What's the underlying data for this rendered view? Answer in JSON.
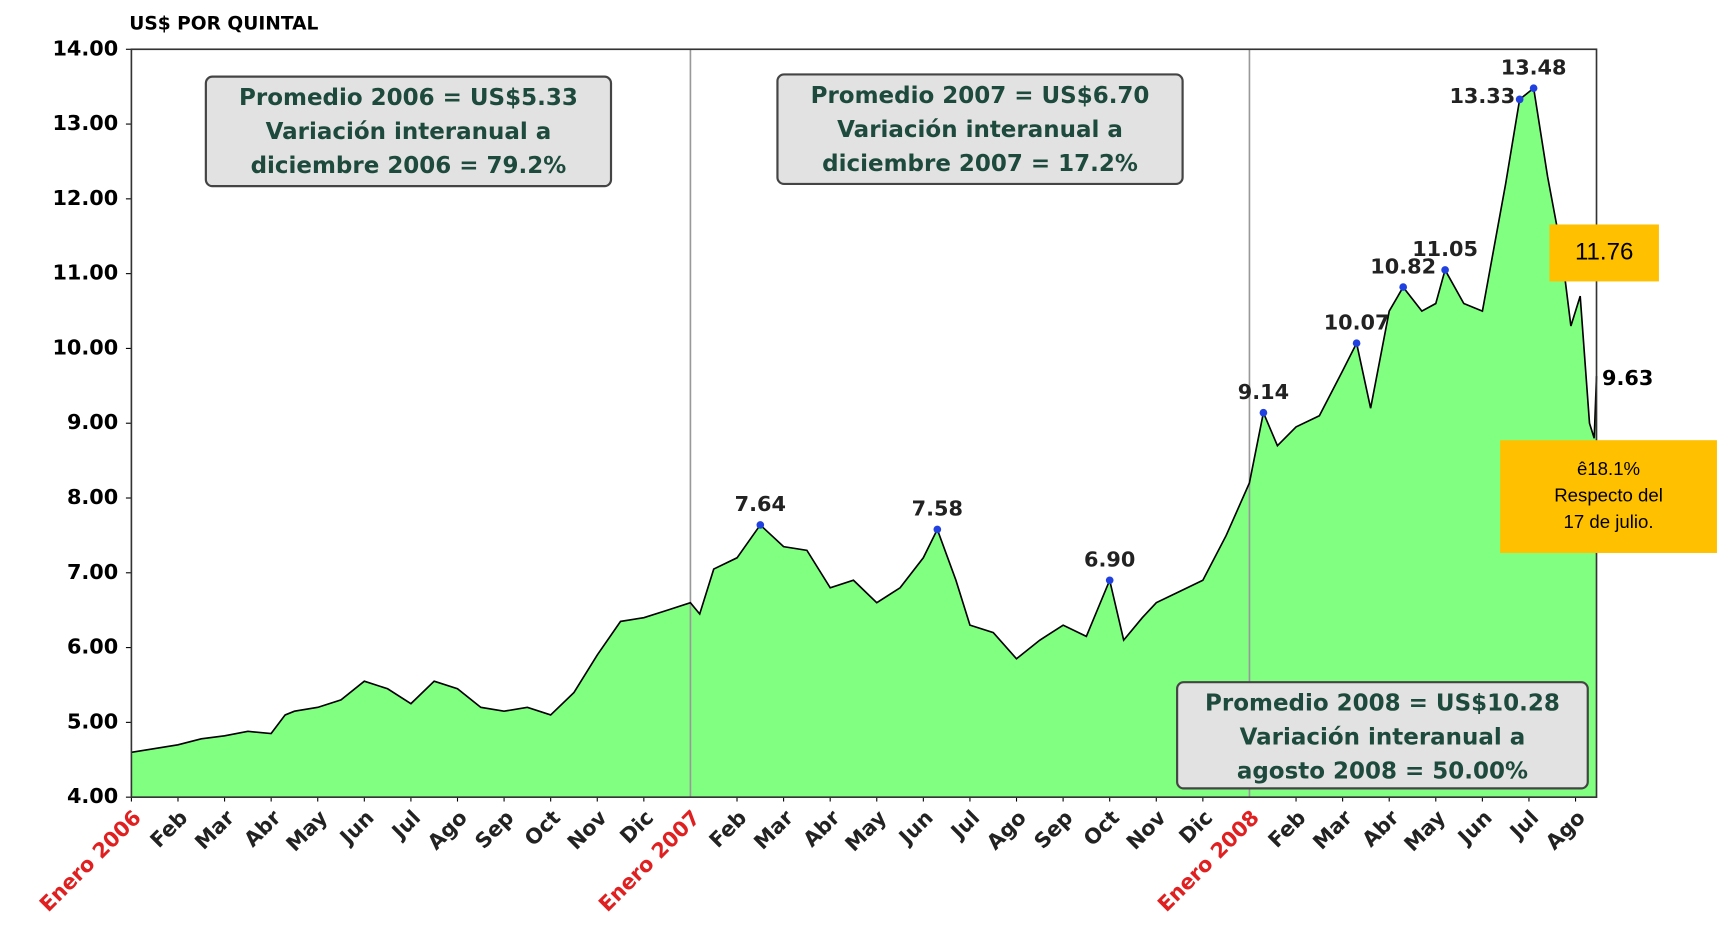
{
  "chart_data": {
    "type": "area",
    "y_label": "US$ POR QUINTAL",
    "color": "#80ff80",
    "line_color": "#000000",
    "xlim": [
      0,
      31.45
    ],
    "xticks": [
      {
        "value": 0,
        "label": "Enero 2006"
      },
      {
        "value": 1,
        "label": "Feb"
      },
      {
        "value": 2,
        "label": "Mar"
      },
      {
        "value": 3,
        "label": "Abr"
      },
      {
        "value": 4,
        "label": "May"
      },
      {
        "value": 5,
        "label": "Jun"
      },
      {
        "value": 6,
        "label": "Jul"
      },
      {
        "value": 7,
        "label": "Ago"
      },
      {
        "value": 8,
        "label": "Sep"
      },
      {
        "value": 9,
        "label": "Oct"
      },
      {
        "value": 10,
        "label": "Nov"
      },
      {
        "value": 11,
        "label": "Dic"
      },
      {
        "value": 12,
        "label": "Enero 2007"
      },
      {
        "value": 13,
        "label": "Feb"
      },
      {
        "value": 14,
        "label": "Mar"
      },
      {
        "value": 15,
        "label": "Abr"
      },
      {
        "value": 16,
        "label": "May"
      },
      {
        "value": 17,
        "label": "Jun"
      },
      {
        "value": 18,
        "label": "Jul"
      },
      {
        "value": 19,
        "label": "Ago"
      },
      {
        "value": 20,
        "label": "Sep"
      },
      {
        "value": 21,
        "label": "Oct"
      },
      {
        "value": 22,
        "label": "Nov"
      },
      {
        "value": 23,
        "label": "Dic"
      },
      {
        "value": 24,
        "label": "Enero 2008"
      },
      {
        "value": 25,
        "label": "Feb"
      },
      {
        "value": 26,
        "label": "Mar"
      },
      {
        "value": 27,
        "label": "Abr"
      },
      {
        "value": 28,
        "label": "May"
      },
      {
        "value": 29,
        "label": "Jun"
      },
      {
        "value": 30,
        "label": "Jul"
      },
      {
        "value": 31,
        "label": "Ago"
      }
    ],
    "ylim": [
      4,
      14
    ],
    "yticks": [
      {
        "value": 4,
        "label": "4.00"
      },
      {
        "value": 5,
        "label": "5.00"
      },
      {
        "value": 6,
        "label": "6.00"
      },
      {
        "value": 7,
        "label": "7.00"
      },
      {
        "value": 8,
        "label": "8.00"
      },
      {
        "value": 9,
        "label": "9.00"
      },
      {
        "value": 10,
        "label": "10.00"
      },
      {
        "value": 11,
        "label": "11.00"
      },
      {
        "value": 12,
        "label": "12.00"
      },
      {
        "value": 13,
        "label": "13.00"
      },
      {
        "value": 14,
        "label": "14.00"
      }
    ],
    "series": [
      {
        "x": [
          0,
          0.5,
          1,
          1.5,
          2,
          2.5,
          3,
          3.3,
          3.5,
          4,
          4.5,
          5,
          5.5,
          6,
          6.5,
          7,
          7.5,
          8,
          8.5,
          9,
          9.5,
          10,
          10.5,
          11,
          11.5,
          12,
          12.2,
          12.5,
          13,
          13.5,
          14,
          14.5,
          15,
          15.5,
          16,
          16.5,
          17,
          17.3,
          17.7,
          18,
          18.5,
          19,
          19.5,
          20,
          20.5,
          21,
          21.3,
          21.7,
          22,
          22.5,
          23,
          23.5,
          24,
          24.3,
          24.6,
          25,
          25.5,
          26,
          26.3,
          26.6,
          27,
          27.3,
          27.7,
          28,
          28.2,
          28.6,
          29,
          29.5,
          29.8,
          30.1,
          30.4,
          30.7,
          30.9,
          31.1,
          31.3,
          31.4,
          31.45
        ],
        "values": [
          4.6,
          4.65,
          4.7,
          4.78,
          4.82,
          4.88,
          4.85,
          5.1,
          5.15,
          5.2,
          5.3,
          5.55,
          5.45,
          5.25,
          5.55,
          5.45,
          5.2,
          5.15,
          5.2,
          5.1,
          5.4,
          5.9,
          6.35,
          6.4,
          6.5,
          6.6,
          6.45,
          7.05,
          7.2,
          7.64,
          7.35,
          7.3,
          6.8,
          6.9,
          6.6,
          6.8,
          7.2,
          7.58,
          6.9,
          6.3,
          6.2,
          5.85,
          6.1,
          6.3,
          6.15,
          6.9,
          6.1,
          6.4,
          6.6,
          6.75,
          6.9,
          7.5,
          8.2,
          9.14,
          8.7,
          8.95,
          9.1,
          9.7,
          10.07,
          9.2,
          10.5,
          10.82,
          10.5,
          10.6,
          11.05,
          10.6,
          10.5,
          12.2,
          13.33,
          13.48,
          12.3,
          11.3,
          10.3,
          10.7,
          9.0,
          8.8,
          9.63
        ]
      }
    ],
    "peaks": {
      "x": [
        13.5,
        17.3,
        21,
        24.3,
        26.3,
        27.3,
        28.2,
        29.8,
        30.1
      ],
      "values": [
        7.64,
        7.58,
        6.9,
        9.14,
        10.07,
        10.82,
        11.05,
        13.33,
        13.48
      ],
      "value_labels": [
        "7.64",
        "7.58",
        "6.90",
        "9.14",
        "10.07",
        "10.82",
        "11.05",
        "13.33",
        "13.48"
      ]
    },
    "last_label": "9.63",
    "notes": [
      [
        "Promedio 2006 = US$5.33",
        "Variación interanual a",
        "diciembre 2006 = 79.2%"
      ],
      [
        "Promedio 2007 = US$6.70",
        "Variación interanual a",
        "diciembre 2007 = 17.2%"
      ],
      [
        "Promedio 2008 = US$10.28",
        "Variación interanual a",
        "agosto 2008 = 50.00%"
      ]
    ],
    "highlights": [
      [
        "11.76"
      ],
      [
        "ê18.1%",
        "Respecto  del",
        "17 de julio."
      ]
    ]
  }
}
